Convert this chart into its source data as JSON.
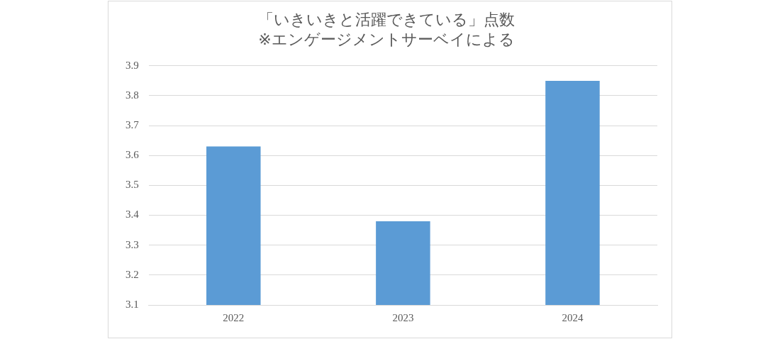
{
  "chart_data": {
    "type": "bar",
    "title": "「いきいきと活躍できている」点数",
    "subtitle": "※エンゲージメントサーベイによる",
    "categories": [
      "2022",
      "2023",
      "2024"
    ],
    "values": [
      3.63,
      3.38,
      3.85
    ],
    "color": "#5b9bd5",
    "ylim": [
      3.1,
      3.9
    ],
    "yticks": [
      3.1,
      3.2,
      3.3,
      3.4,
      3.5,
      3.6,
      3.7,
      3.8,
      3.9
    ],
    "grid": "y",
    "legend": false
  }
}
